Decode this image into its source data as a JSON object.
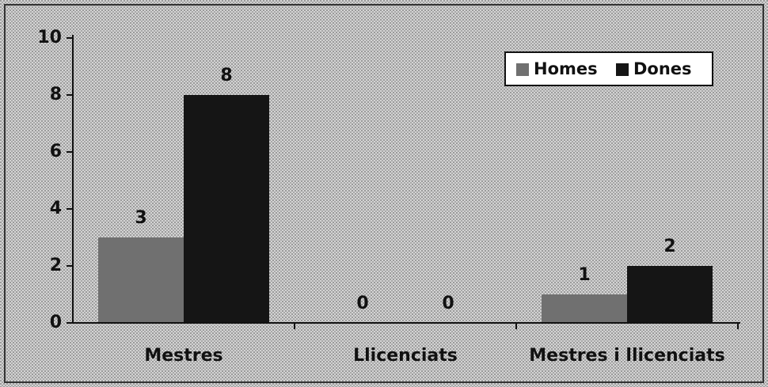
{
  "chart_data": {
    "type": "bar",
    "categories": [
      "Mestres",
      "Llicenciats",
      "Mestres i llicenciats"
    ],
    "series": [
      {
        "name": "Homes",
        "color": "#707070",
        "values": [
          3,
          0,
          1
        ]
      },
      {
        "name": "Dones",
        "color": "#151515",
        "values": [
          8,
          0,
          2
        ]
      }
    ],
    "ylim": [
      0,
      10
    ],
    "yticks": [
      0,
      2,
      4,
      6,
      8,
      10
    ],
    "legend": "top-right",
    "grid": false
  }
}
